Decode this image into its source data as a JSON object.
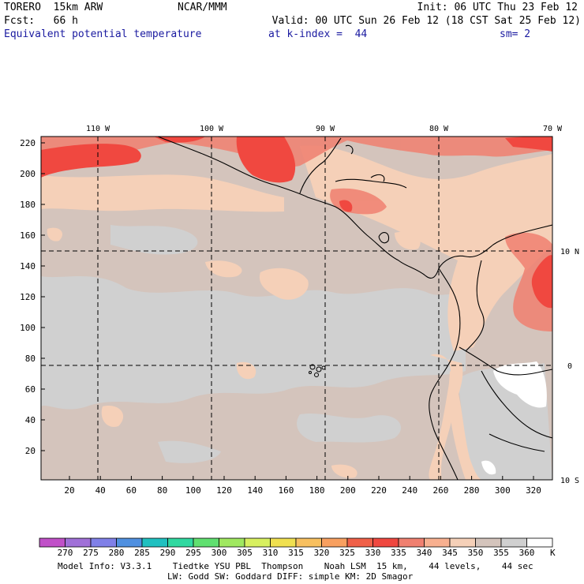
{
  "header": {
    "model": "TORERO  15km ARW",
    "org": "NCAR/MMM",
    "init": "Init: 06 UTC Thu 23 Feb 12",
    "fcst": "Fcst:   66 h",
    "valid": "Valid: 00 UTC Sun 26 Feb 12 (18 CST Sat 25 Feb 12)",
    "field": "Equivalent potential temperature",
    "level": "at k-index =  44",
    "smooth": "sm= 2"
  },
  "map": {
    "lon_labels": [
      "110 W",
      "100 W",
      "90 W",
      "80 W",
      "70 W"
    ],
    "lat_labels": [
      "10 N",
      "0",
      "10 S"
    ],
    "y_ticks": [
      "220",
      "200",
      "180",
      "160",
      "140",
      "120",
      "100",
      "80",
      "60",
      "40",
      "20"
    ],
    "x_ticks": [
      "20",
      "40",
      "60",
      "80",
      "100",
      "120",
      "140",
      "160",
      "180",
      "200",
      "220",
      "240",
      "260",
      "280",
      "300",
      "320"
    ]
  },
  "colorbar": {
    "labels": [
      "270",
      "275",
      "280",
      "285",
      "290",
      "295",
      "300",
      "305",
      "310",
      "315",
      "320",
      "325",
      "330",
      "335",
      "340",
      "345",
      "350",
      "355",
      "360"
    ],
    "unit": "K",
    "colors": [
      "#c050c8",
      "#a070d8",
      "#8080e8",
      "#5090e0",
      "#20c0c0",
      "#30d8a0",
      "#60e070",
      "#a0e860",
      "#d8f060",
      "#f0e050",
      "#f8c060",
      "#f8a060",
      "#f06048",
      "#f04840",
      "#f08070",
      "#f8b090",
      "#f5d0b8",
      "#d4c4bc",
      "#d0d0d0",
      "#ffffff"
    ]
  },
  "footer": {
    "line1": "Model Info: V3.3.1    Tiedtke YSU PBL  Thompson    Noah LSM  15 km,    44 levels,    44 sec",
    "line2": "LW: Godd SW: Goddard DIFF: simple KM: 2D Smagor"
  }
}
